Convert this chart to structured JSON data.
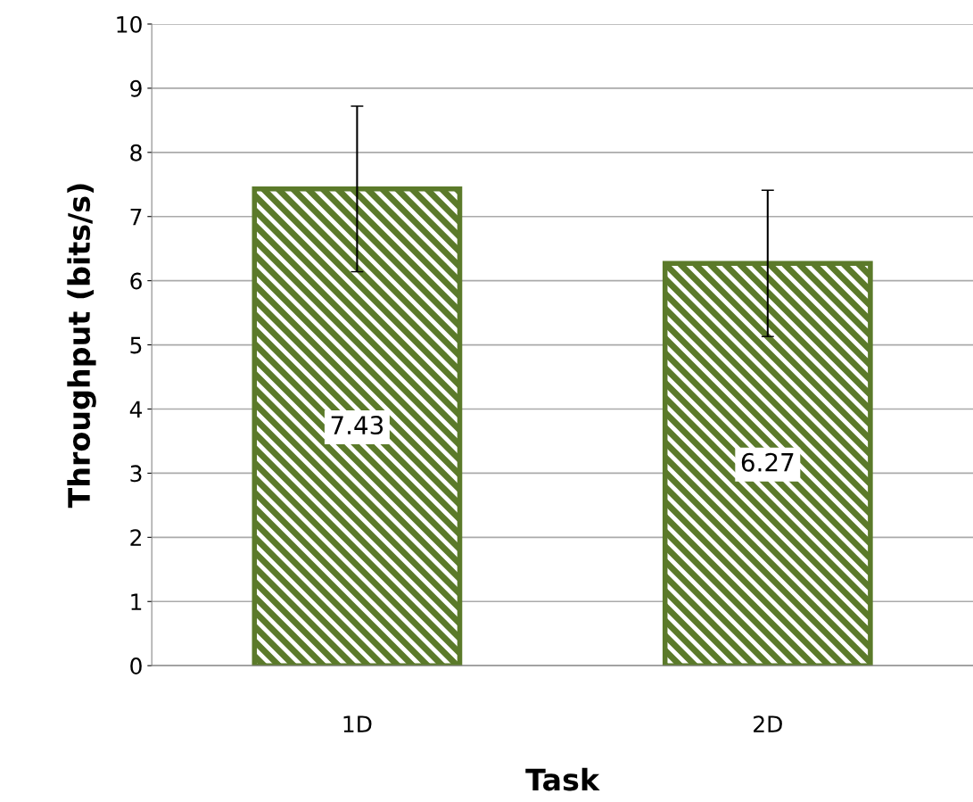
{
  "chart_data": {
    "type": "bar",
    "xlabel": "Task",
    "ylabel": "Throughput (bits/s)",
    "categories": [
      "1D",
      "2D"
    ],
    "values": [
      7.43,
      6.27
    ],
    "errors": [
      1.29,
      1.14
    ],
    "color": "#5b7a2a",
    "ylim": [
      0,
      10
    ],
    "yticks": [
      0,
      1,
      2,
      3,
      4,
      5,
      6,
      7,
      8,
      9,
      10
    ],
    "grid": "y",
    "data_labels": true
  }
}
